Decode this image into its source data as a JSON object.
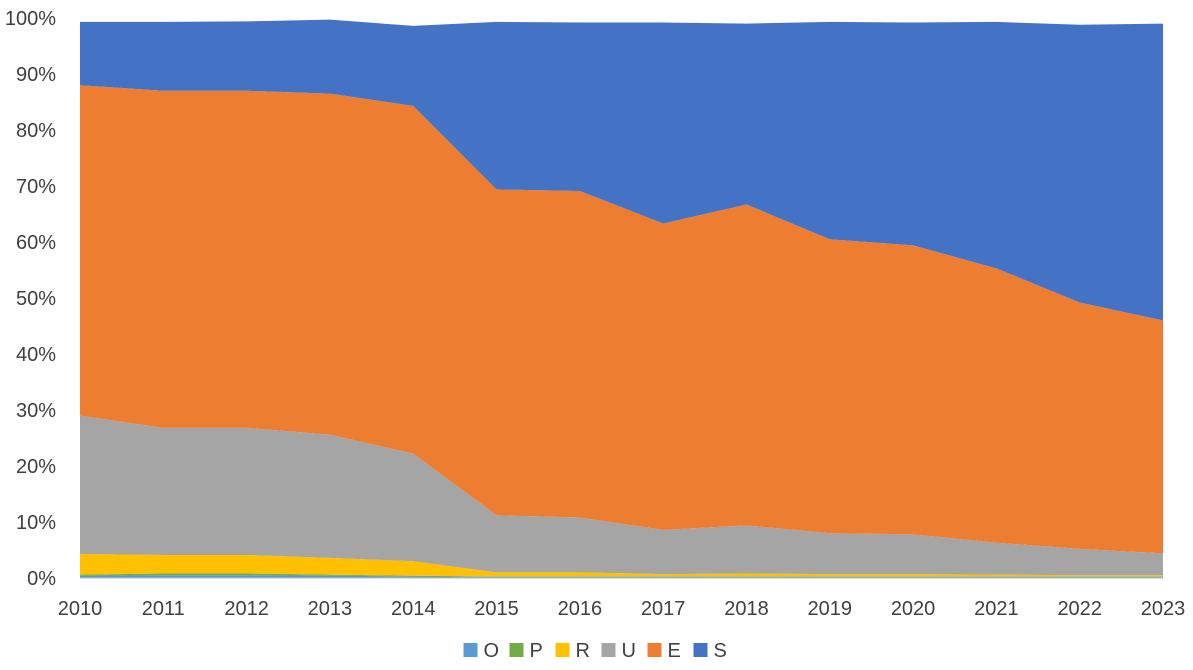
{
  "chart_data": {
    "type": "area",
    "stacked": true,
    "categories": [
      "2010",
      "2011",
      "2012",
      "2013",
      "2014",
      "2015",
      "2016",
      "2017",
      "2018",
      "2019",
      "2020",
      "2021",
      "2022",
      "2023"
    ],
    "ylim": [
      0,
      100
    ],
    "yticks": [
      "0%",
      "10%",
      "20%",
      "30%",
      "40%",
      "50%",
      "60%",
      "70%",
      "80%",
      "90%",
      "100%"
    ],
    "grid": false,
    "legend_position": "bottom",
    "series": [
      {
        "name": "O",
        "color": "#5B9BD5",
        "values": [
          0.4,
          0.5,
          0.5,
          0.4,
          0.3,
          0.2,
          0.2,
          0.2,
          0.2,
          0.2,
          0.2,
          0.2,
          0.2,
          0.2
        ]
      },
      {
        "name": "P",
        "color": "#70AD47",
        "values": [
          0.2,
          0.3,
          0.3,
          0.2,
          0.1,
          0.1,
          0.1,
          0.1,
          0.1,
          0.1,
          0.1,
          0.1,
          0.1,
          0.1
        ]
      },
      {
        "name": "R",
        "color": "#FFC000",
        "values": [
          3.7,
          3.3,
          3.3,
          3.0,
          2.6,
          0.7,
          0.7,
          0.4,
          0.5,
          0.4,
          0.4,
          0.3,
          0.2,
          0.2
        ]
      },
      {
        "name": "U",
        "color": "#A5A5A5",
        "values": [
          24.7,
          22.7,
          22.7,
          22.0,
          19.2,
          10.2,
          9.8,
          7.9,
          8.6,
          7.3,
          7.1,
          5.7,
          4.7,
          3.9
        ]
      },
      {
        "name": "E",
        "color": "#ED7D31",
        "values": [
          59.0,
          60.2,
          60.2,
          60.9,
          62.1,
          58.2,
          58.3,
          54.7,
          57.3,
          52.5,
          51.6,
          49.0,
          44.0,
          41.6
        ]
      },
      {
        "name": "S",
        "color": "#4472C4",
        "values": [
          11.3,
          12.3,
          12.4,
          13.2,
          14.3,
          29.9,
          30.1,
          35.9,
          32.3,
          38.8,
          39.8,
          44.0,
          49.6,
          53.0
        ]
      }
    ]
  }
}
